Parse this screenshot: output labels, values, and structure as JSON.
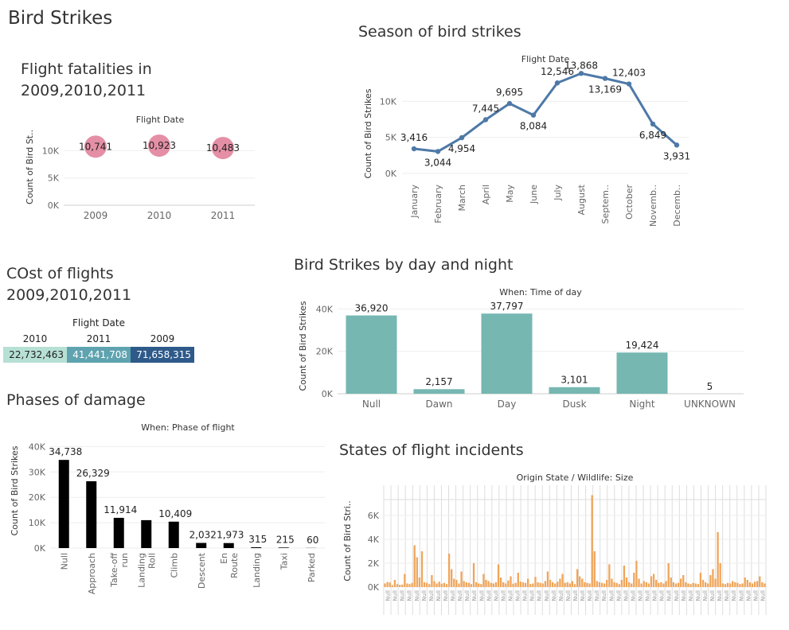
{
  "dashboard_title": "Bird Strikes",
  "colors": {
    "fatalities": "#e48fa6",
    "season": "#4e79a7",
    "daynight": "#76b7b2",
    "phases": "#000000",
    "states": "#f0a55a",
    "cost_2010": "#b7e0d4",
    "cost_2011": "#5fa3b0",
    "cost_2009": "#2e5a8a"
  },
  "chart_data": [
    {
      "id": "fatalities",
      "type": "scatter",
      "title": "Flight fatalities in 2009,2010,2011",
      "column_header": "Flight Date",
      "ylabel": "Count of Bird St..",
      "categories": [
        "2009",
        "2010",
        "2011"
      ],
      "values": [
        10741,
        10923,
        10483
      ],
      "value_labels": [
        "10,741",
        "10,923",
        "10,483"
      ],
      "yticks": [
        "0K",
        "5K",
        "10K"
      ],
      "ylim": [
        0,
        14000
      ]
    },
    {
      "id": "season",
      "type": "line",
      "title": "Season of bird strikes",
      "column_header": "Flight Date",
      "ylabel": "Count of Bird Strikes",
      "categories": [
        "January",
        "February",
        "March",
        "April",
        "May",
        "June",
        "July",
        "August",
        "Septem..",
        "October",
        "Novemb..",
        "Decemb.."
      ],
      "values": [
        3416,
        3044,
        4954,
        7445,
        9695,
        8084,
        12546,
        13868,
        13169,
        12403,
        6849,
        3931
      ],
      "value_labels": [
        "3,416",
        "3,044",
        "4,954",
        "7,445",
        "9,695",
        "8,084",
        "12,546",
        "13,868",
        "13,169",
        "12,403",
        "6,849",
        "3,931"
      ],
      "yticks": [
        "0K",
        "5K",
        "10K"
      ],
      "ylim": [
        0,
        15000
      ]
    },
    {
      "id": "cost",
      "type": "table",
      "title": "COst of flights 2009,2010,2011",
      "column_header": "Flight Date",
      "categories": [
        "2010",
        "2011",
        "2009"
      ],
      "values": [
        22732463,
        41441708,
        71658315
      ],
      "value_labels": [
        "22,732,463",
        "41,441,708",
        "71,658,315"
      ]
    },
    {
      "id": "daynight",
      "type": "bar",
      "title": "Bird Strikes by day and night",
      "column_header": "When: Time of day",
      "ylabel": "Count of Bird Strikes",
      "categories": [
        "Null",
        "Dawn",
        "Day",
        "Dusk",
        "Night",
        "UNKNOWN"
      ],
      "values": [
        36920,
        2157,
        37797,
        3101,
        19424,
        5
      ],
      "value_labels": [
        "36,920",
        "2,157",
        "37,797",
        "3,101",
        "19,424",
        "5"
      ],
      "yticks": [
        "0K",
        "20K",
        "40K"
      ],
      "ylim": [
        0,
        45000
      ]
    },
    {
      "id": "phases",
      "type": "bar",
      "title": "Phases of damage",
      "column_header": "When: Phase of flight",
      "ylabel": "Count of Bird Strikes",
      "categories": [
        "Null",
        "Approach",
        "Take-off run",
        "Landing Roll",
        "Climb",
        "Descent",
        "En Route",
        "Landing",
        "Taxi",
        "Parked"
      ],
      "values": [
        34738,
        26329,
        11914,
        11000,
        10409,
        2032,
        1973,
        315,
        215,
        60
      ],
      "value_labels": [
        "34,738",
        "26,329",
        "11,914",
        "",
        "10,409",
        "2,032",
        "1,973",
        "315",
        "215",
        "60"
      ],
      "yticks": [
        "0K",
        "10K",
        "20K",
        "30K",
        "40K"
      ],
      "ylim": [
        0,
        42000
      ]
    },
    {
      "id": "states",
      "type": "bar",
      "title": "States of flight incidents",
      "column_header": "Origin State / Wildlife: Size",
      "ylabel": "Count of Bird Stri..",
      "tick_label": "Null",
      "yticks": [
        "0K",
        "2K",
        "4K",
        "6K"
      ],
      "ylim": [
        0,
        8200
      ],
      "values": [
        300,
        420,
        380,
        150,
        600,
        250,
        180,
        200,
        1100,
        300,
        250,
        350,
        3500,
        2500,
        800,
        3000,
        400,
        350,
        250,
        1000,
        500,
        300,
        450,
        280,
        350,
        250,
        2800,
        1500,
        700,
        600,
        300,
        1300,
        500,
        400,
        350,
        250,
        2000,
        400,
        300,
        250,
        1100,
        600,
        500,
        350,
        300,
        400,
        1900,
        800,
        400,
        300,
        550,
        900,
        280,
        350,
        1200,
        450,
        400,
        350,
        700,
        250,
        300,
        850,
        400,
        350,
        300,
        500,
        1300,
        600,
        400,
        300,
        450,
        700,
        1100,
        350,
        400,
        300,
        500,
        250,
        1500,
        900,
        700,
        400,
        350,
        300,
        7700,
        3000,
        500,
        400,
        350,
        300,
        600,
        1900,
        700,
        400,
        350,
        250,
        600,
        1800,
        800,
        400,
        300,
        1200,
        2200,
        700,
        300,
        500,
        400,
        300,
        900,
        1100,
        600,
        350,
        400,
        300,
        500,
        2000,
        800,
        400,
        300,
        350,
        700,
        1000,
        400,
        300,
        250,
        350,
        300,
        250,
        1200,
        600,
        400,
        300,
        1000,
        1500,
        700,
        4600,
        2000,
        300,
        250,
        350,
        300,
        500,
        400,
        350,
        250,
        300,
        800,
        600,
        400,
        300,
        450,
        500,
        900,
        400,
        300
      ]
    }
  ]
}
